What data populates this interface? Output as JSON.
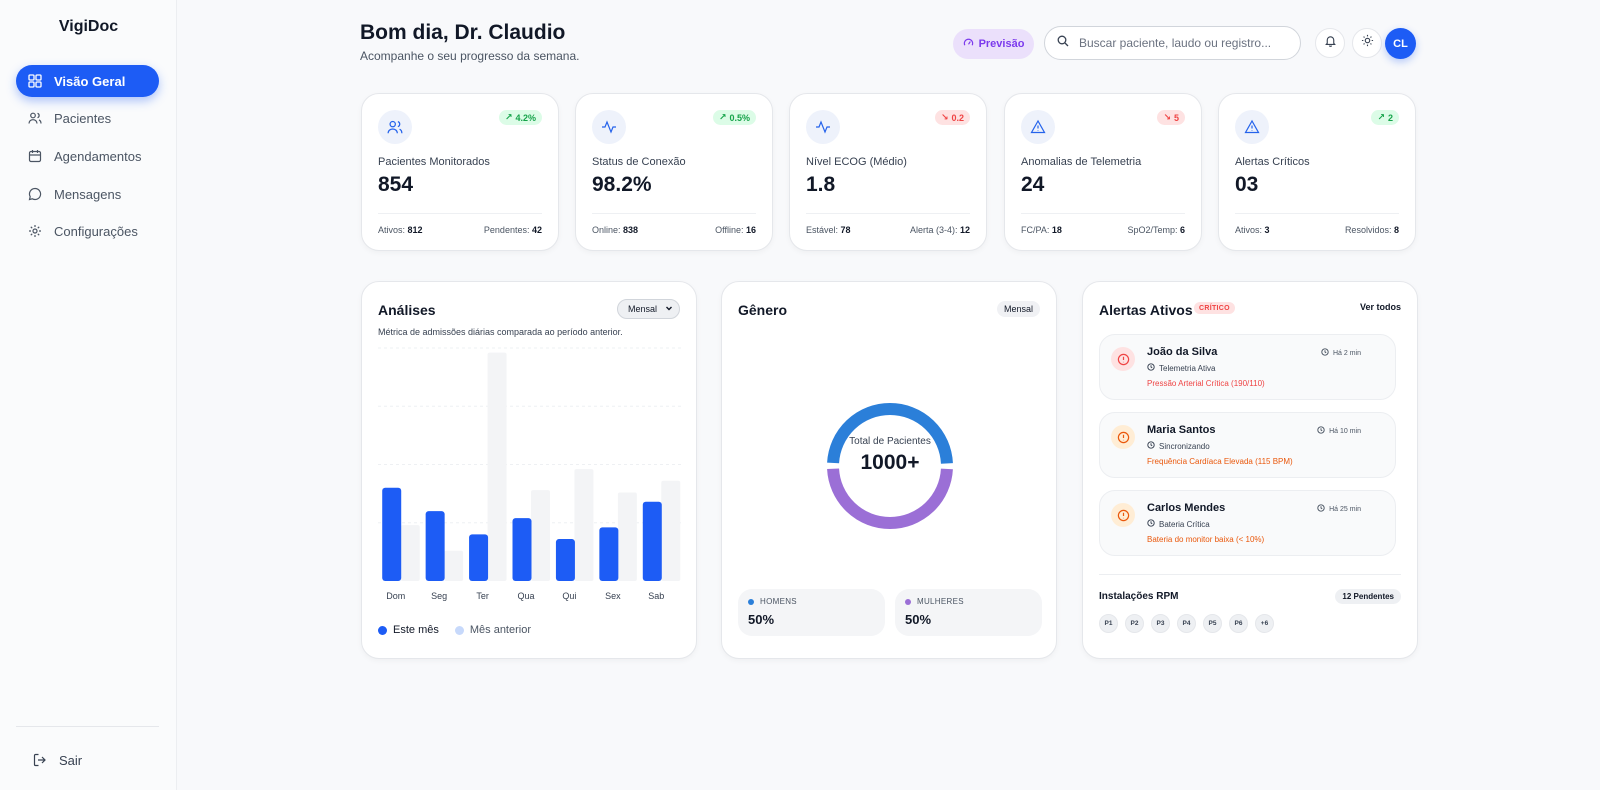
{
  "sidebar": {
    "logo": "VigiDoc",
    "items": [
      {
        "label": "Visão Geral",
        "icon": "grid-icon",
        "active": true
      },
      {
        "label": "Pacientes",
        "icon": "users-icon"
      },
      {
        "label": "Agendamentos",
        "icon": "calendar-icon"
      },
      {
        "label": "Mensagens",
        "icon": "message-icon"
      },
      {
        "label": "Configurações",
        "icon": "gear-icon"
      }
    ],
    "logout": "Sair"
  },
  "header": {
    "greeting": "Bom dia, Dr. Claudio",
    "subtitle": "Acompanhe o seu progresso da semana.",
    "forecast_button": "Previsão",
    "search_placeholder": "Buscar paciente, laudo ou registro...",
    "avatar_initials": "CL"
  },
  "stats": [
    {
      "label": "Pacientes Monitorados",
      "value": "854",
      "trend": "4.2%",
      "direction": "up",
      "icon": "users-icon",
      "foot_left_label": "Ativos:",
      "foot_left_value": "812",
      "foot_right_label": "Pendentes:",
      "foot_right_value": "42"
    },
    {
      "label": "Status de Conexão",
      "value": "98.2%",
      "trend": "0.5%",
      "direction": "up",
      "icon": "activity-icon",
      "foot_left_label": "Online:",
      "foot_left_value": "838",
      "foot_right_label": "Offline:",
      "foot_right_value": "16"
    },
    {
      "label": "Nível ECOG (Médio)",
      "value": "1.8",
      "trend": "0.2",
      "direction": "down",
      "icon": "activity-icon",
      "foot_left_label": "Estável:",
      "foot_left_value": "78",
      "foot_right_label": "Alerta (3-4):",
      "foot_right_value": "12"
    },
    {
      "label": "Anomalias de Telemetria",
      "value": "24",
      "trend": "5",
      "direction": "down",
      "icon": "warning-icon",
      "foot_left_label": "FC/PA:",
      "foot_left_value": "18",
      "foot_right_label": "SpO2/Temp:",
      "foot_right_value": "6"
    },
    {
      "label": "Alertas Críticos",
      "value": "03",
      "trend": "2",
      "direction": "up",
      "icon": "warning-icon",
      "foot_left_label": "Ativos:",
      "foot_left_value": "3",
      "foot_right_label": "Resolvidos:",
      "foot_right_value": "8"
    }
  ],
  "analysis": {
    "title": "Análises",
    "period": "Mensal",
    "description": "Métrica de admissões diárias comparada ao período anterior.",
    "legend_current": "Este mês",
    "legend_previous": "Mês anterior"
  },
  "chart_data": {
    "type": "bar",
    "categories": [
      "Dom",
      "Seg",
      "Ter",
      "Qua",
      "Qui",
      "Sex",
      "Sab"
    ],
    "series": [
      {
        "name": "Este mês",
        "values": [
          40,
          30,
          20,
          27,
          18,
          23,
          34
        ]
      },
      {
        "name": "Mês anterior",
        "values": [
          24,
          13,
          98,
          39,
          48,
          38,
          43
        ]
      }
    ],
    "ylim": [
      0,
      100
    ],
    "grid": true,
    "legend": "bottom-left",
    "colors": {
      "current": "#1d5cf5",
      "previous": "#f3f4f6"
    }
  },
  "gender": {
    "title": "Gênero",
    "period": "Mensal",
    "center_label": "Total de Pacientes",
    "center_value": "1000+",
    "men_label": "HOMENS",
    "men_value": "50%",
    "women_label": "MULHERES",
    "women_value": "50%",
    "men_color": "#2b7fd9",
    "women_color": "#9b6fd6",
    "men_share": 0.5
  },
  "alerts": {
    "title": "Alertas Ativos",
    "badge": "CRÍTICO",
    "view_all": "Ver todos",
    "items": [
      {
        "name": "João da Silva",
        "status": "Telemetria Ativa",
        "message": "Pressão Arterial Crítica (190/110)",
        "time": "Há 2 min",
        "color": "#ef4444",
        "bg": "#fee2e2"
      },
      {
        "name": "Maria Santos",
        "status": "Sincronizando",
        "message": "Frequência Cardíaca Elevada (115 BPM)",
        "time": "Há 10 min",
        "color": "#ea580c",
        "bg": "#ffedd5"
      },
      {
        "name": "Carlos Mendes",
        "status": "Bateria Crítica",
        "message": "Bateria do monitor baixa (< 10%)",
        "time": "Há 25 min",
        "color": "#ea580c",
        "bg": "#ffedd5"
      }
    ],
    "rpm_title": "Instalações RPM",
    "rpm_badge": "12 Pendentes",
    "rpm_chips": [
      "P1",
      "P2",
      "P3",
      "P4",
      "P5",
      "P6",
      "+6"
    ]
  }
}
